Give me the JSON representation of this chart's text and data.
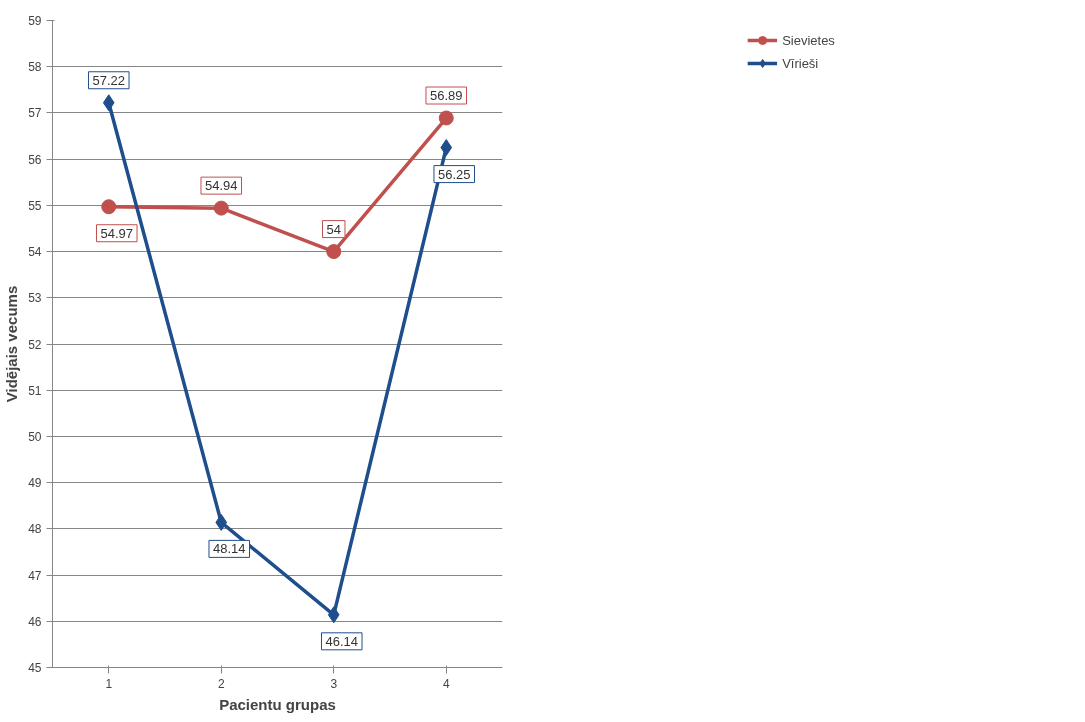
{
  "chart_data": {
    "type": "line",
    "xlabel": "Pacientu grupas",
    "ylabel": "Vidējais vecums",
    "categories": [
      "1",
      "2",
      "3",
      "4"
    ],
    "series": [
      {
        "name": "Sievietes",
        "color": "#c0504d",
        "marker": "circle",
        "values": [
          54.97,
          54.94,
          54,
          56.89
        ]
      },
      {
        "name": "Vīrieši",
        "color": "#1f4e8c",
        "marker": "diamond",
        "values": [
          57.22,
          48.14,
          46.14,
          56.25
        ]
      }
    ],
    "ylim": [
      45,
      59
    ],
    "yticks": [
      45,
      46,
      47,
      48,
      49,
      50,
      51,
      52,
      53,
      54,
      55,
      56,
      57,
      58,
      59
    ],
    "grid": "y",
    "legend": "top right",
    "data_labels": true
  }
}
